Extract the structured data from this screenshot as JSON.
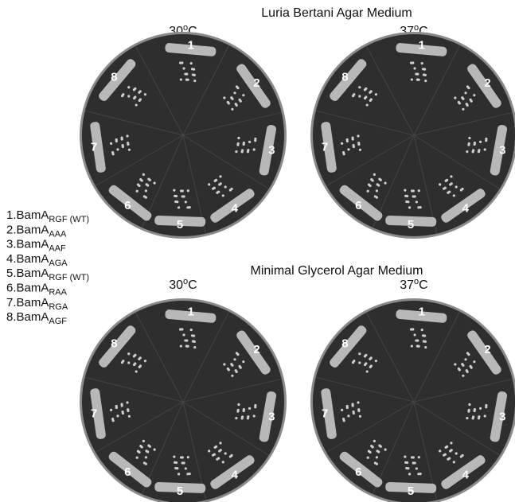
{
  "panels": [
    {
      "title": "Luria Bertani Agar Medium",
      "plates": [
        {
          "temperature": {
            "number": "30",
            "sup": "o",
            "unit": "C"
          },
          "sector_labels": [
            "1",
            "2",
            "3",
            "4",
            "5",
            "6",
            "7",
            "8"
          ]
        },
        {
          "temperature": {
            "number": "37",
            "sup": "o",
            "unit": "C"
          },
          "sector_labels": [
            "1",
            "2",
            "3",
            "4",
            "5",
            "6",
            "7",
            "8"
          ]
        }
      ]
    },
    {
      "title": "Minimal Glycerol Agar Medium",
      "plates": [
        {
          "temperature": {
            "number": "30",
            "sup": "o",
            "unit": "C"
          },
          "sector_labels": [
            "1",
            "2",
            "3",
            "4",
            "5",
            "6",
            "7",
            "8"
          ]
        },
        {
          "temperature": {
            "number": "37",
            "sup": "o",
            "unit": "C"
          },
          "sector_labels": [
            "1",
            "2",
            "3",
            "4",
            "5",
            "6",
            "7",
            "8"
          ]
        }
      ]
    }
  ],
  "legend": [
    {
      "prefix": "1.BamA",
      "subscript": "RGF (WT)"
    },
    {
      "prefix": "2.BamA",
      "subscript": "AAA"
    },
    {
      "prefix": "3.BamA",
      "subscript": "AAF"
    },
    {
      "prefix": "4.BamA",
      "subscript": "AGA"
    },
    {
      "prefix": "5.BamA",
      "subscript": "RGF (WT)"
    },
    {
      "prefix": "6.BamA",
      "subscript": "RAA"
    },
    {
      "prefix": "7.BamA",
      "subscript": "RGA"
    },
    {
      "prefix": "8.BamA",
      "subscript": "AGF"
    }
  ]
}
